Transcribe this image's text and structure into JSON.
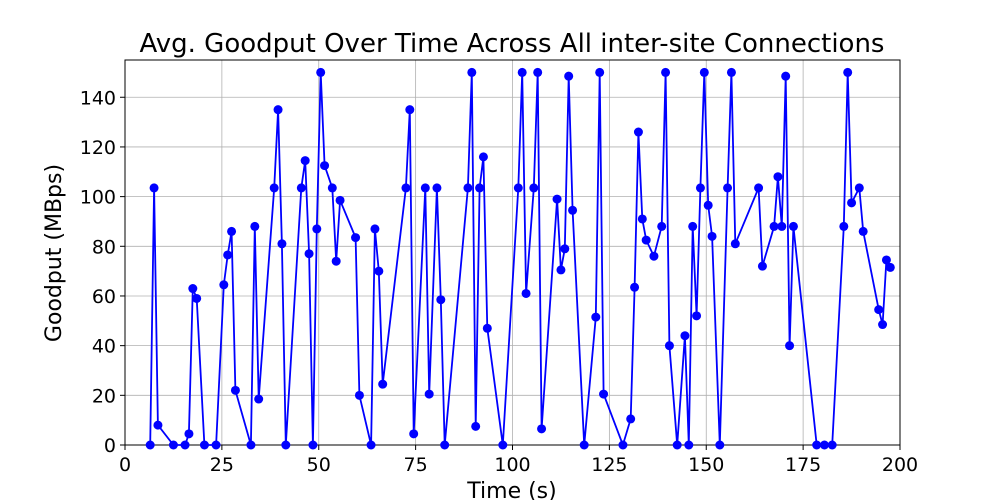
{
  "chart_data": {
    "type": "line",
    "title": "Avg. Goodput Over Time Across All inter-site Connections",
    "xlabel": "Time (s)",
    "ylabel": "Goodput (MBps)",
    "xlim": [
      0,
      200
    ],
    "ylim": [
      0,
      155
    ],
    "xticks": [
      0,
      25,
      50,
      75,
      100,
      125,
      150,
      175,
      200
    ],
    "yticks": [
      0,
      20,
      40,
      60,
      80,
      100,
      120,
      140
    ],
    "grid": true,
    "line_color": "#0000ff",
    "marker": "circle",
    "series": [
      {
        "points": [
          [
            6.5,
            0
          ],
          [
            7.5,
            103.5
          ],
          [
            8.5,
            8
          ],
          [
            12.5,
            0
          ],
          [
            15.5,
            0
          ],
          [
            16.5,
            4.5
          ],
          [
            17.5,
            63
          ],
          [
            18.5,
            59
          ],
          [
            20.5,
            0
          ],
          [
            23.5,
            0
          ],
          [
            25.5,
            64.5
          ],
          [
            26.5,
            76.5
          ],
          [
            27.5,
            86
          ],
          [
            28.5,
            22
          ],
          [
            32.5,
            0
          ],
          [
            33.5,
            88
          ],
          [
            34.5,
            18.5
          ],
          [
            38.5,
            103.5
          ],
          [
            39.5,
            135
          ],
          [
            40.5,
            81
          ],
          [
            41.5,
            0
          ],
          [
            45.5,
            103.5
          ],
          [
            46.5,
            114.5
          ],
          [
            47.5,
            77
          ],
          [
            48.5,
            0
          ],
          [
            49.5,
            87
          ],
          [
            50.5,
            150
          ],
          [
            51.5,
            112.5
          ],
          [
            53.5,
            103.5
          ],
          [
            54.5,
            74
          ],
          [
            55.5,
            98.5
          ],
          [
            59.5,
            83.5
          ],
          [
            60.5,
            20
          ],
          [
            63.5,
            0
          ],
          [
            64.5,
            87
          ],
          [
            65.5,
            70
          ],
          [
            66.5,
            24.5
          ],
          [
            72.5,
            103.5
          ],
          [
            73.5,
            135
          ],
          [
            74.5,
            4.5
          ],
          [
            77.5,
            103.5
          ],
          [
            78.5,
            20.5
          ],
          [
            80.5,
            103.5
          ],
          [
            81.5,
            58.5
          ],
          [
            82.5,
            0
          ],
          [
            88.5,
            103.5
          ],
          [
            89.5,
            150
          ],
          [
            90.5,
            7.5
          ],
          [
            91.5,
            103.5
          ],
          [
            92.5,
            116
          ],
          [
            93.5,
            47
          ],
          [
            97.5,
            0
          ],
          [
            101.5,
            103.5
          ],
          [
            102.5,
            150
          ],
          [
            103.5,
            61
          ],
          [
            105.5,
            103.5
          ],
          [
            106.5,
            150
          ],
          [
            107.5,
            6.5
          ],
          [
            111.5,
            99
          ],
          [
            112.5,
            70.5
          ],
          [
            113.5,
            79
          ],
          [
            114.5,
            148.5
          ],
          [
            115.5,
            94.5
          ],
          [
            118.5,
            0
          ],
          [
            121.5,
            51.5
          ],
          [
            122.5,
            150
          ],
          [
            123.5,
            20.5
          ],
          [
            128.5,
            0
          ],
          [
            130.5,
            10.5
          ],
          [
            131.5,
            63.5
          ],
          [
            132.5,
            126
          ],
          [
            133.5,
            91
          ],
          [
            134.5,
            82.5
          ],
          [
            136.5,
            76
          ],
          [
            138.5,
            88
          ],
          [
            139.5,
            150
          ],
          [
            140.5,
            40
          ],
          [
            142.5,
            0
          ],
          [
            144.5,
            44
          ],
          [
            145.5,
            0
          ],
          [
            146.5,
            88
          ],
          [
            147.5,
            52
          ],
          [
            148.5,
            103.5
          ],
          [
            149.5,
            150
          ],
          [
            150.5,
            96.5
          ],
          [
            151.5,
            84
          ],
          [
            153.5,
            0
          ],
          [
            155.5,
            103.5
          ],
          [
            156.5,
            150
          ],
          [
            157.5,
            81
          ],
          [
            163.5,
            103.5
          ],
          [
            164.5,
            72
          ],
          [
            167.5,
            88
          ],
          [
            168.5,
            108
          ],
          [
            169.5,
            88
          ],
          [
            170.5,
            148.5
          ],
          [
            171.5,
            40
          ],
          [
            172.5,
            88
          ],
          [
            178.5,
            0
          ],
          [
            180.5,
            0
          ],
          [
            182.5,
            0
          ],
          [
            185.5,
            88
          ],
          [
            186.5,
            150
          ],
          [
            187.5,
            97.5
          ],
          [
            189.5,
            103.5
          ],
          [
            190.5,
            86
          ],
          [
            194.5,
            54.5
          ],
          [
            195.5,
            48.5
          ],
          [
            196.5,
            74.5
          ],
          [
            197.5,
            71.5
          ]
        ]
      }
    ]
  }
}
